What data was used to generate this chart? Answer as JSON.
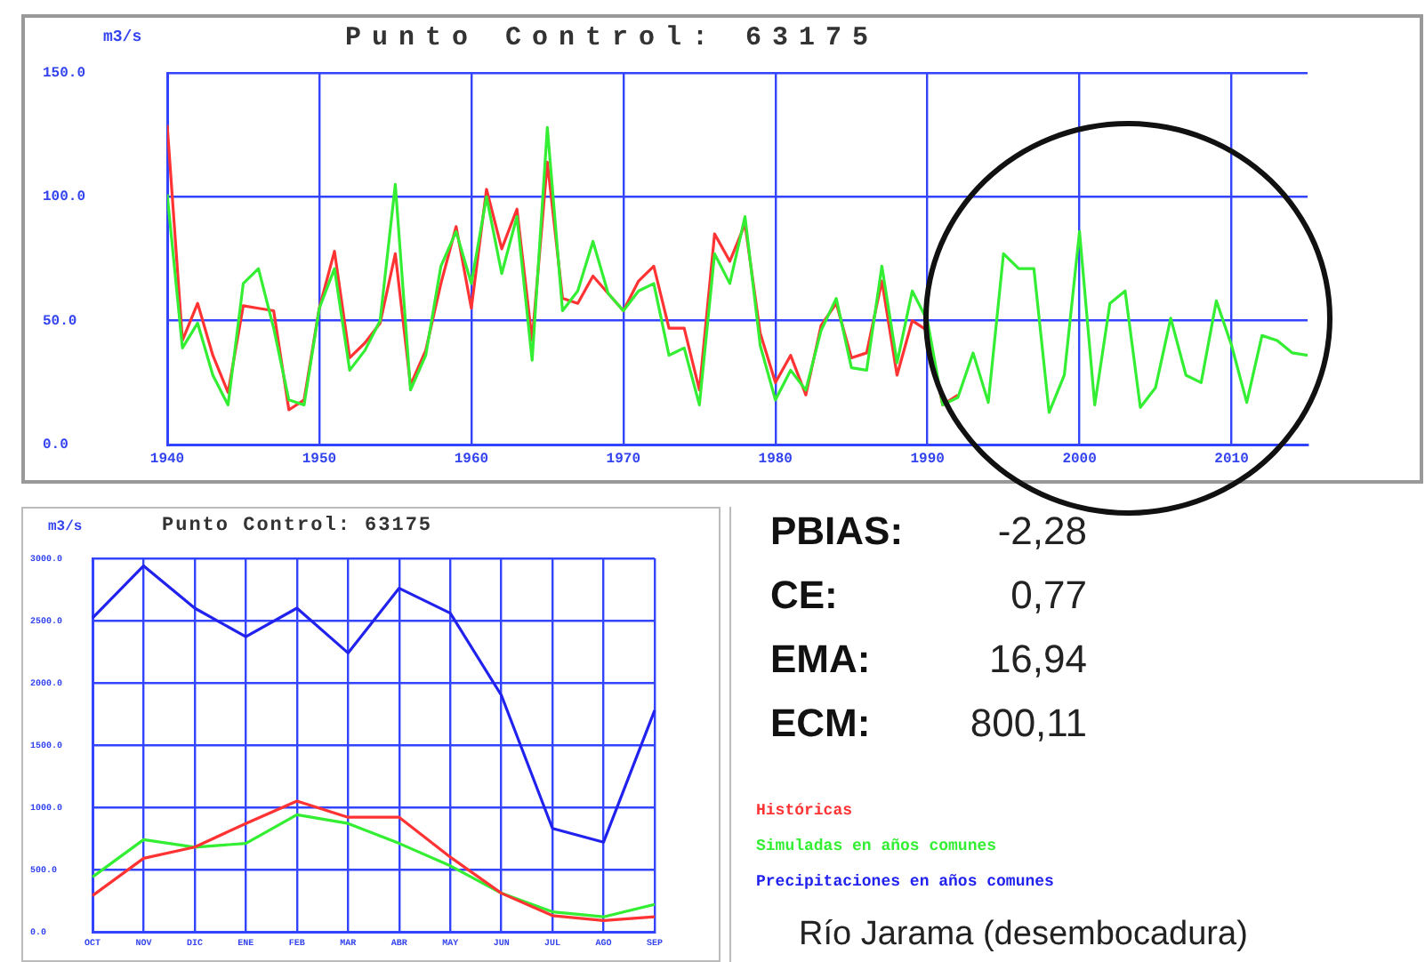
{
  "chart_data": [
    {
      "type": "line",
      "title": "Punto Control: 63175",
      "ylabel": "m3/s",
      "grid": true,
      "x": [
        1940,
        1941,
        1942,
        1943,
        1944,
        1945,
        1946,
        1947,
        1948,
        1949,
        1950,
        1951,
        1952,
        1953,
        1954,
        1955,
        1956,
        1957,
        1958,
        1959,
        1960,
        1961,
        1962,
        1963,
        1964,
        1965,
        1966,
        1967,
        1968,
        1969,
        1970,
        1971,
        1972,
        1973,
        1974,
        1975,
        1976,
        1977,
        1978,
        1979,
        1980,
        1981,
        1982,
        1983,
        1984,
        1985,
        1986,
        1987,
        1988,
        1989,
        1990,
        1991,
        1992,
        1993,
        1994,
        1995,
        1996,
        1997,
        1998,
        1999,
        2000,
        2001,
        2002,
        2003,
        2004,
        2005,
        2006,
        2007,
        2008,
        2009,
        2010,
        2011,
        2012,
        2013,
        2014,
        2015
      ],
      "xlim": [
        1940,
        2015
      ],
      "xticks": [
        {
          "value": 1940,
          "label": "1940"
        },
        {
          "value": 1950,
          "label": "1950"
        },
        {
          "value": 1960,
          "label": "1960"
        },
        {
          "value": 1970,
          "label": "1970"
        },
        {
          "value": 1980,
          "label": "1980"
        },
        {
          "value": 1990,
          "label": "1990"
        },
        {
          "value": 2000,
          "label": "2000"
        },
        {
          "value": 2010,
          "label": "2010"
        }
      ],
      "ylim": [
        0,
        150
      ],
      "yticks": [
        {
          "value": 0,
          "label": "0.0"
        },
        {
          "value": 50,
          "label": "50.0"
        },
        {
          "value": 100,
          "label": "100.0"
        },
        {
          "value": 150,
          "label": "150.0"
        }
      ],
      "series": [
        {
          "color": "#33ee33",
          "values": [
            101,
            39,
            49,
            28,
            16,
            65,
            71,
            47,
            18,
            16,
            55,
            71,
            30,
            38,
            50,
            105,
            22,
            36,
            72,
            86,
            65,
            100,
            69,
            92,
            34,
            128,
            54,
            62,
            82,
            61,
            54,
            62,
            65,
            36,
            39,
            16,
            77,
            65,
            92,
            40,
            18,
            30,
            22,
            46,
            59,
            31,
            30,
            72,
            33,
            62,
            50,
            16,
            19,
            37,
            17,
            77,
            71,
            71,
            13,
            28,
            86,
            16,
            57,
            62,
            15,
            23,
            51,
            28,
            25,
            58,
            40,
            17,
            44,
            42,
            37,
            36
          ]
        },
        {
          "color": "#ff3333",
          "values": [
            129,
            42,
            57,
            36,
            21,
            56,
            55,
            54,
            14,
            18,
            55,
            78,
            35,
            41,
            49,
            77,
            24,
            38,
            65,
            88,
            55,
            103,
            79,
            95,
            42,
            114,
            59,
            57,
            68,
            61,
            54,
            66,
            72,
            47,
            47,
            22,
            85,
            74,
            89,
            45,
            25,
            36,
            20,
            48,
            57,
            35,
            37,
            66,
            28,
            50,
            46,
            16,
            20,
            null,
            null,
            null,
            null,
            null,
            null,
            null,
            null,
            null,
            null,
            null,
            null,
            null,
            null,
            null,
            null,
            null,
            null,
            null,
            null,
            null,
            null,
            null
          ]
        }
      ]
    },
    {
      "type": "line",
      "title": "Punto Control: 63175",
      "ylabel": "m3/s",
      "grid": true,
      "legend": "right",
      "categories": [
        "OCT",
        "NOV",
        "DIC",
        "ENE",
        "FEB",
        "MAR",
        "ABR",
        "MAY",
        "JUN",
        "JUL",
        "AGO",
        "SEP"
      ],
      "ylim": [
        0,
        3000
      ],
      "yticks": [
        {
          "value": 0,
          "label": "0.0"
        },
        {
          "value": 500,
          "label": "500.0"
        },
        {
          "value": 1000,
          "label": "1000.0"
        },
        {
          "value": 1500,
          "label": "1500.0"
        },
        {
          "value": 2000,
          "label": "2000.0"
        },
        {
          "value": 2500,
          "label": "2500.0"
        },
        {
          "value": 3000,
          "label": "3000.0"
        }
      ],
      "series": [
        {
          "name": "Históricas",
          "color": "#ff3333",
          "values": [
            290,
            590,
            680,
            870,
            1050,
            920,
            920,
            600,
            310,
            130,
            90,
            120
          ]
        },
        {
          "name": "Simuladas en años comunes",
          "color": "#33ee33",
          "values": [
            440,
            740,
            680,
            710,
            940,
            870,
            710,
            530,
            310,
            160,
            120,
            220
          ]
        },
        {
          "name": "Precipitaciones en años comunes",
          "color": "#2222ee",
          "values": [
            2520,
            2940,
            2600,
            2370,
            2600,
            2240,
            2760,
            2560,
            1900,
            830,
            720,
            1780
          ]
        }
      ]
    },
    {
      "type": "other",
      "annotations": [
        "PBIAS: -2,28",
        "CE: 0,77",
        "EMA: 16,94",
        "ECM: 800,11",
        "Río Jarama (desembocadura)"
      ]
    }
  ]
}
